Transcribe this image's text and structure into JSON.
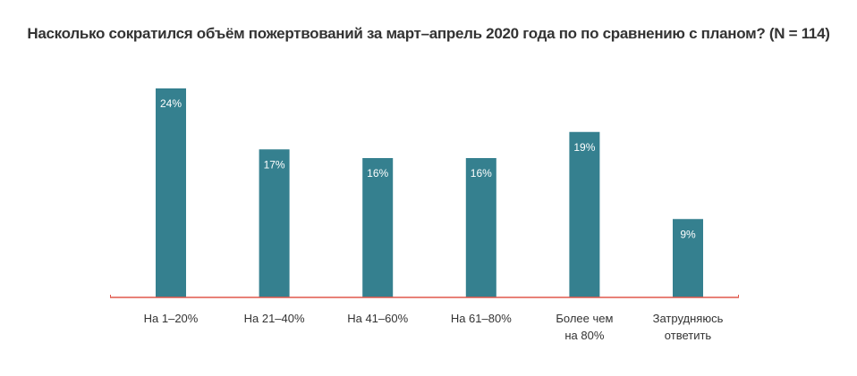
{
  "chart_data": {
    "type": "bar",
    "title": "Насколько сократился объём пожертвований за март–апрель 2020 года по по сравнению с планом? (N = 114)",
    "categories": [
      [
        "На 1–20%"
      ],
      [
        "На 21–40%"
      ],
      [
        "На 41–60%"
      ],
      [
        "На 61–80%"
      ],
      [
        "Более чем",
        "на 80%"
      ],
      [
        "Затрудняюсь",
        "ответить"
      ]
    ],
    "values": [
      24,
      17,
      16,
      16,
      19,
      9
    ],
    "value_labels": [
      "24%",
      "17%",
      "16%",
      "16%",
      "19%",
      "9%"
    ],
    "ylim": [
      0,
      24
    ],
    "grid": false,
    "colors": {
      "bar": "#35808f",
      "axis": "#e0584b"
    }
  }
}
